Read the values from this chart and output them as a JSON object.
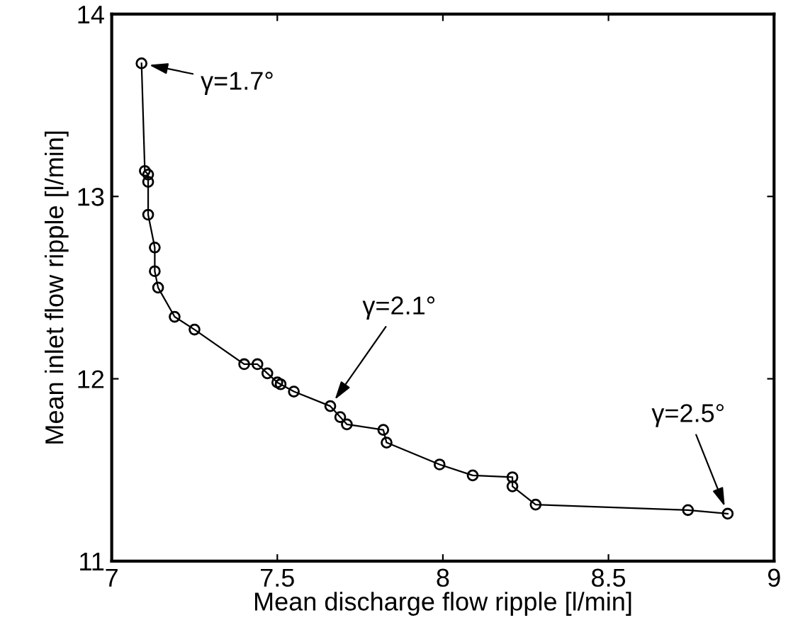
{
  "chart_data": {
    "type": "line",
    "xlabel": "Mean discharge flow ripple [l/min]",
    "ylabel": "Mean inlet flow ripple [l/min]",
    "x": [
      7.09,
      7.1,
      7.11,
      7.11,
      7.11,
      7.13,
      7.13,
      7.14,
      7.19,
      7.25,
      7.4,
      7.44,
      7.47,
      7.5,
      7.51,
      7.55,
      7.66,
      7.69,
      7.71,
      7.82,
      7.83,
      7.99,
      8.09,
      8.21,
      8.21,
      8.28,
      8.74,
      8.86
    ],
    "series": [
      {
        "color": "#000000",
        "values": [
          13.73,
          13.14,
          13.12,
          13.08,
          12.9,
          12.72,
          12.59,
          12.5,
          12.34,
          12.27,
          12.08,
          12.08,
          12.03,
          11.98,
          11.97,
          11.93,
          11.85,
          11.79,
          11.75,
          11.72,
          11.65,
          11.53,
          11.47,
          11.46,
          11.41,
          11.31,
          11.28,
          11.26
        ]
      }
    ],
    "marker": "circle",
    "line_style": "solid",
    "grid": false,
    "legend": false,
    "xlim": [
      7,
      9
    ],
    "ylim": [
      11,
      14
    ],
    "xticks": [
      7,
      7.5,
      8,
      8.5,
      9
    ],
    "yticks": [
      11,
      12,
      13,
      14
    ],
    "annotations": [
      {
        "text": "γ=1.7°",
        "x": 7.09,
        "y": 13.73
      },
      {
        "text": "γ=2.1°",
        "x": 7.66,
        "y": 11.85
      },
      {
        "text": "γ=2.5°",
        "x": 8.86,
        "y": 11.26
      }
    ]
  }
}
